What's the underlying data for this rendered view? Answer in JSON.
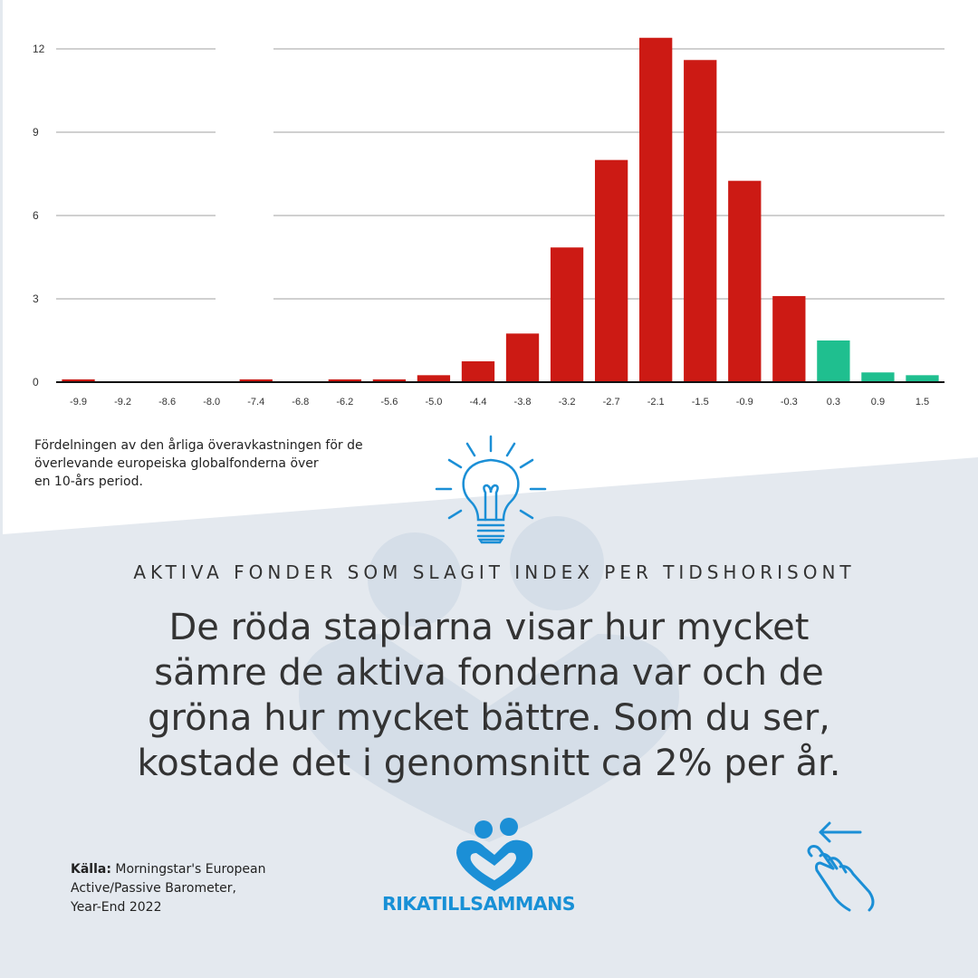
{
  "colors": {
    "negative": "#cc1a14",
    "positive": "#1fbf8f",
    "accent": "#1b8fd6",
    "text": "#333333",
    "grid": "#d0d0d0"
  },
  "chart_data": {
    "type": "bar",
    "categories": [
      "-9.9",
      "-9.2",
      "-8.6",
      "-8.0",
      "-7.4",
      "-6.8",
      "-6.2",
      "-5.6",
      "-5.0",
      "-4.4",
      "-3.8",
      "-3.2",
      "-2.7",
      "-2.1",
      "-1.5",
      "-0.9",
      "-0.3",
      "0.3",
      "0.9",
      "1.5"
    ],
    "values": [
      0.1,
      0,
      0,
      0,
      0.1,
      0,
      0.1,
      0.1,
      0.25,
      0.75,
      1.75,
      4.85,
      8.0,
      12.4,
      11.6,
      7.25,
      3.1,
      1.5,
      0.35,
      0.25
    ],
    "yticks": [
      "0",
      "3",
      "6",
      "9",
      "12"
    ],
    "ylim": [
      0,
      12
    ],
    "grid": true,
    "xlabel": "",
    "ylabel": ""
  },
  "caption": {
    "line1": "Fördelningen av den årliga överavkastningen för de",
    "line2": "överlevande europeiska globalfonderna över",
    "line3": "en 10-års period."
  },
  "subtitle": "AKTIVA FONDER SOM SLAGIT INDEX PER TIDSHORISONT",
  "headline": {
    "line1": "De röda staplarna visar hur mycket",
    "line2": "sämre de aktiva fonderna var och de",
    "line3": "gröna hur mycket bättre. Som du ser,",
    "line4": "kostade det i genomsnitt ca 2% per år."
  },
  "source": {
    "label": "Källa:",
    "line1": " Morningstar's European",
    "line2": "Active/Passive Barometer,",
    "line3": "Year-End 2022"
  },
  "brand": "RIKATILLSAMMANS",
  "icons": {
    "lightbulb": "lightbulb-icon",
    "logo": "heart-people-logo-icon",
    "swipe": "swipe-hand-icon"
  }
}
